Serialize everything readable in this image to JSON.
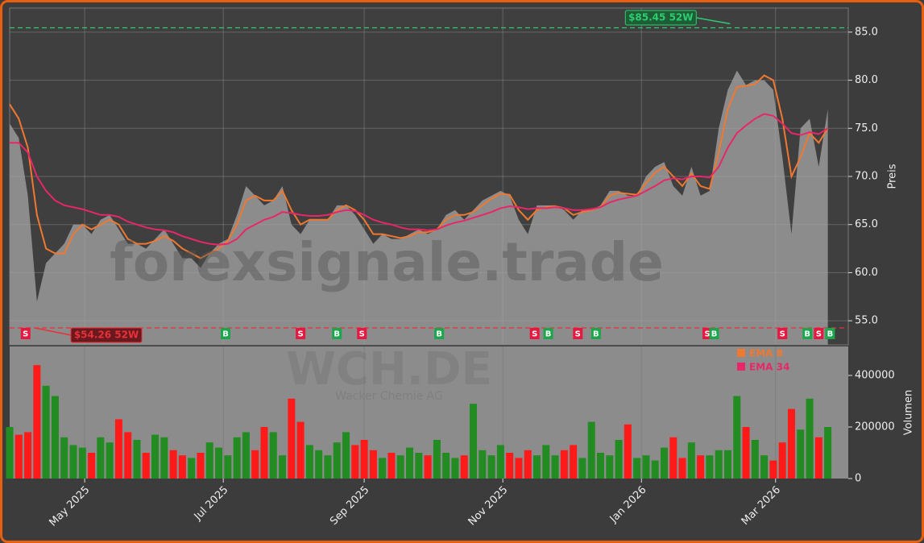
{
  "chart_data": {
    "type": "price-volume",
    "watermark": "forexsignale.trade",
    "ticker": "WCH.DE",
    "company": "Wacker Chemie AG",
    "xlim": [
      0,
      369
    ],
    "xticks": [
      {
        "value": 33,
        "label": "May 2025"
      },
      {
        "value": 94,
        "label": "Jul 2025"
      },
      {
        "value": 156,
        "label": "Sep 2025"
      },
      {
        "value": 217,
        "label": "Nov 2025"
      },
      {
        "value": 278,
        "label": "Jan 2026"
      },
      {
        "value": 337,
        "label": "Mar 2026"
      }
    ],
    "x": [
      0,
      4,
      8,
      12,
      16,
      20,
      24,
      28,
      32,
      36,
      40,
      44,
      48,
      52,
      56,
      60,
      64,
      68,
      72,
      76,
      80,
      84,
      88,
      92,
      96,
      100,
      104,
      108,
      112,
      116,
      120,
      124,
      128,
      132,
      136,
      140,
      144,
      148,
      152,
      156,
      160,
      164,
      168,
      172,
      176,
      180,
      184,
      188,
      192,
      196,
      200,
      204,
      208,
      212,
      216,
      220,
      224,
      228,
      232,
      236,
      240,
      244,
      248,
      252,
      256,
      260,
      264,
      268,
      272,
      276,
      280,
      284,
      288,
      292,
      296,
      300,
      304,
      308,
      312,
      316,
      320,
      324,
      328,
      332,
      336,
      340,
      344,
      348,
      352,
      356,
      360
    ],
    "price": {
      "ylabel": "Preis",
      "ylim": [
        52.5,
        87.5
      ],
      "yticks": [
        {
          "value": 55,
          "label": "55.0"
        },
        {
          "value": 60,
          "label": "60.0"
        },
        {
          "value": 65,
          "label": "65.0"
        },
        {
          "value": 70,
          "label": "70.0"
        },
        {
          "value": 75,
          "label": "75.0"
        },
        {
          "value": 80,
          "label": "80.0"
        },
        {
          "value": 85,
          "label": "85.0"
        }
      ],
      "grid": true,
      "area_color": "#8c8c8c",
      "values": [
        75.5,
        74,
        68,
        57,
        61,
        62,
        63,
        65,
        65,
        64,
        65.5,
        66,
        64.5,
        63,
        63,
        62.5,
        63.5,
        64.5,
        63,
        61.5,
        61.5,
        60.5,
        62,
        63,
        63.5,
        66,
        69,
        68,
        67,
        67.5,
        69,
        65,
        64,
        65.5,
        65.5,
        65.5,
        67,
        67,
        66,
        64.5,
        63,
        64,
        63.5,
        63.5,
        64,
        64.5,
        64,
        64.5,
        66,
        66.5,
        65.5,
        66.5,
        67.5,
        68,
        68.5,
        68,
        65.5,
        64,
        67,
        67,
        67,
        66.5,
        65.5,
        66.5,
        66.5,
        67,
        68.5,
        68.5,
        68,
        68,
        70,
        71,
        71.5,
        69,
        68,
        71,
        68,
        68.5,
        75,
        79,
        81,
        79.5,
        80,
        80,
        79,
        72,
        64,
        75,
        76,
        71,
        77
      ],
      "series": [
        {
          "name": "EMA 8",
          "color": "#f07830",
          "values": [
            77.5,
            76,
            73,
            66,
            62.5,
            62,
            62,
            64,
            65,
            64.5,
            65,
            65.5,
            65,
            63.5,
            63,
            63,
            63.3,
            63.8,
            63.3,
            62.5,
            62,
            61.5,
            62,
            62.5,
            63.3,
            65,
            67.5,
            68,
            67.5,
            67.5,
            68.5,
            66.5,
            65,
            65.5,
            65.5,
            65.5,
            66.5,
            67,
            66.5,
            65.5,
            64,
            64,
            63.8,
            63.6,
            63.8,
            64.2,
            64.2,
            64.5,
            65.5,
            66,
            66,
            66.3,
            67,
            67.7,
            68.2,
            68.1,
            66.5,
            65.5,
            66.5,
            66.8,
            66.9,
            66.7,
            66,
            66.3,
            66.5,
            66.8,
            68,
            68.3,
            68.2,
            68.1,
            69.3,
            70.4,
            71,
            70,
            69,
            70.3,
            69,
            68.7,
            72.5,
            77,
            79.3,
            79.4,
            79.6,
            80.5,
            80,
            76,
            70,
            72,
            74.5,
            73.5,
            75
          ]
        },
        {
          "name": "EMA 34",
          "color": "#e8266a",
          "values": [
            73.5,
            73.5,
            72.5,
            70,
            68.5,
            67.5,
            67,
            66.8,
            66.6,
            66.3,
            66,
            66,
            65.8,
            65.3,
            65,
            64.7,
            64.5,
            64.4,
            64.2,
            63.8,
            63.5,
            63.2,
            63,
            62.9,
            63,
            63.5,
            64.5,
            65,
            65.5,
            65.8,
            66.3,
            66.2,
            66,
            65.9,
            65.9,
            66,
            66.3,
            66.5,
            66.4,
            66,
            65.5,
            65.2,
            65,
            64.7,
            64.5,
            64.5,
            64.4,
            64.5,
            64.9,
            65.2,
            65.4,
            65.7,
            66,
            66.3,
            66.7,
            66.9,
            66.8,
            66.6,
            66.7,
            66.7,
            66.8,
            66.7,
            66.5,
            66.5,
            66.6,
            66.8,
            67.3,
            67.6,
            67.8,
            68,
            68.5,
            69,
            69.6,
            69.8,
            69.7,
            70,
            70,
            69.9,
            71,
            73,
            74.5,
            75.3,
            76,
            76.5,
            76.3,
            75.5,
            74.5,
            74.3,
            74.6,
            74.4,
            75
          ]
        }
      ],
      "high": {
        "label": "$85.45 52W",
        "value": 85.45,
        "x": 317,
        "color": "#2ecc71"
      },
      "low": {
        "label": "$54.26 52W",
        "value": 54.26,
        "x": 11,
        "color": "#e8303a"
      },
      "signals": [
        {
          "label": "S",
          "x": 7
        },
        {
          "label": "B",
          "x": 95
        },
        {
          "label": "S",
          "x": 128
        },
        {
          "label": "B",
          "x": 144
        },
        {
          "label": "S",
          "x": 155
        },
        {
          "label": "B",
          "x": 189
        },
        {
          "label": "S",
          "x": 231
        },
        {
          "label": "B",
          "x": 237
        },
        {
          "label": "S",
          "x": 250
        },
        {
          "label": "B",
          "x": 258
        },
        {
          "label": "S",
          "x": 307
        },
        {
          "label": "B",
          "x": 310
        },
        {
          "label": "S",
          "x": 340
        },
        {
          "label": "B",
          "x": 351
        },
        {
          "label": "S",
          "x": 356
        },
        {
          "label": "B",
          "x": 361
        }
      ],
      "signal_colors": {
        "S": "#e8173f",
        "B": "#1aa64a"
      }
    },
    "volume": {
      "ylabel": "Volumen",
      "ylim": [
        0,
        512500
      ],
      "yticks": [
        0,
        200000,
        400000
      ],
      "up_color": "#228b22",
      "down_color": "#ff1a1a",
      "values": [
        200000,
        170000,
        180000,
        440000,
        360000,
        320000,
        160000,
        130000,
        120000,
        100000,
        160000,
        140000,
        230000,
        180000,
        150000,
        100000,
        170000,
        160000,
        110000,
        90000,
        80000,
        100000,
        140000,
        120000,
        90000,
        160000,
        180000,
        110000,
        200000,
        180000,
        90000,
        310000,
        220000,
        130000,
        110000,
        90000,
        140000,
        180000,
        130000,
        150000,
        110000,
        80000,
        100000,
        90000,
        120000,
        100000,
        90000,
        150000,
        100000,
        80000,
        90000,
        290000,
        110000,
        90000,
        130000,
        100000,
        80000,
        110000,
        90000,
        130000,
        90000,
        110000,
        130000,
        80000,
        220000,
        100000,
        90000,
        150000,
        210000,
        80000,
        90000,
        70000,
        120000,
        160000,
        80000,
        140000,
        90000,
        90000,
        110000,
        110000,
        320000,
        200000,
        150000,
        90000,
        70000,
        140000,
        270000,
        190000,
        310000,
        160000,
        200000
      ]
    }
  }
}
